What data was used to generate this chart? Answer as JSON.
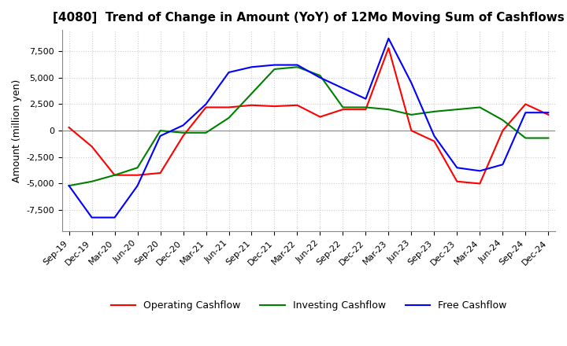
{
  "title": "[4080]  Trend of Change in Amount (YoY) of 12Mo Moving Sum of Cashflows",
  "ylabel": "Amount (million yen)",
  "background_color": "#ffffff",
  "grid_color": "#cccccc",
  "xlabels": [
    "Sep-19",
    "Dec-19",
    "Mar-20",
    "Jun-20",
    "Sep-20",
    "Dec-20",
    "Mar-21",
    "Jun-21",
    "Sep-21",
    "Dec-21",
    "Mar-22",
    "Jun-22",
    "Sep-22",
    "Dec-22",
    "Mar-23",
    "Jun-23",
    "Sep-23",
    "Dec-23",
    "Mar-24",
    "Jun-24",
    "Sep-24",
    "Dec-24"
  ],
  "operating": [
    300,
    -1500,
    -4200,
    -4200,
    -4000,
    -500,
    2200,
    2200,
    2400,
    2300,
    2400,
    1300,
    2000,
    2000,
    7800,
    0,
    -1000,
    -4800,
    -5000,
    0,
    2500,
    1500
  ],
  "investing": [
    -5200,
    -4800,
    -4200,
    -3500,
    0,
    -200,
    -200,
    1200,
    3500,
    5800,
    6000,
    5200,
    2200,
    2200,
    2000,
    1500,
    1800,
    2000,
    2200,
    1000,
    -700,
    -700
  ],
  "free": [
    -5200,
    -8200,
    -8200,
    -5200,
    -500,
    500,
    2500,
    5500,
    6000,
    6200,
    6200,
    5000,
    4000,
    3000,
    8700,
    4500,
    -500,
    -3500,
    -3800,
    -3200,
    1700,
    1700
  ],
  "ylim": [
    -9500,
    9500
  ],
  "yticks": [
    -7500,
    -5000,
    -2500,
    0,
    2500,
    5000,
    7500
  ],
  "op_color": "#ff0000",
  "inv_color": "#008000",
  "free_color": "#0000ff",
  "title_fontsize": 11,
  "tick_fontsize": 8,
  "ylabel_fontsize": 9
}
